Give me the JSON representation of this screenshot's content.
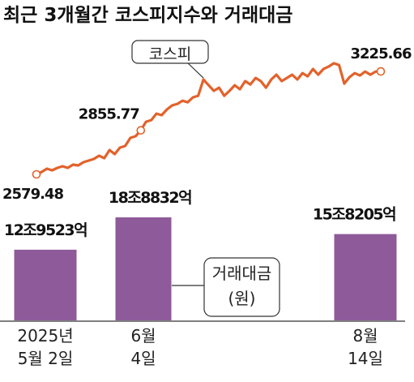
{
  "title": "최근 3개월간 코스피지수와 거래대금",
  "chart_data": [
    {
      "type": "line",
      "series": [
        {
          "name": "코스피",
          "color": "#e2622b",
          "values": [
            2579.48,
            2594.7,
            2615.1,
            2604.9,
            2620.2,
            2630.4,
            2620.2,
            2640.5,
            2635.4,
            2655.8,
            2666.0,
            2676.2,
            2696.5,
            2681.2,
            2732.1,
            2706.7,
            2747.4,
            2757.6,
            2808.4,
            2818.6,
            2855.77,
            2910,
            2920,
            2961,
            2951,
            2987,
            3012,
            3022,
            3042,
            3032,
            3063,
            3073,
            3175,
            3139,
            3104,
            3124,
            3073,
            3104,
            3139,
            3114,
            3165,
            3144,
            3185,
            3165,
            3124,
            3175,
            3205,
            3165,
            3185,
            3205,
            3175,
            3215,
            3195,
            3241,
            3205,
            3241,
            3256,
            3277,
            3266,
            3149,
            3190,
            3215,
            3200,
            3225,
            3205,
            3225,
            3225.66
          ]
        }
      ]
    },
    {
      "type": "bar",
      "categories": [
        "2025년\n5월 2일",
        "6월\n4일",
        "8월\n14일"
      ],
      "series": [
        {
          "name": "거래대금\n(원)",
          "color": "#8e5a9a",
          "values": [
            129523,
            188832,
            158205
          ],
          "value_labels": [
            "12조9523억",
            "18조8832억",
            "15조8205억"
          ]
        }
      ]
    }
  ]
}
